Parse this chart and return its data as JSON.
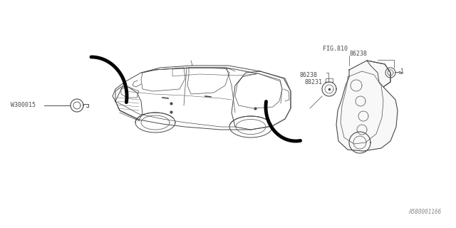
{
  "bg_color": "#ffffff",
  "line_color": "#4a4a4a",
  "text_color": "#4a4a4a",
  "diagram_id": "A580001166",
  "fig_width": 6.4,
  "fig_height": 3.2,
  "dpi": 100,
  "labels": {
    "w300015": "W300015",
    "86238_left": "86238",
    "88231": "88231",
    "86238_top": "86238",
    "fig810": "FIG.810",
    "num_1": "1",
    "diagram_num": "A580001166"
  },
  "font_size": 6.0,
  "small_font_size": 5.5
}
